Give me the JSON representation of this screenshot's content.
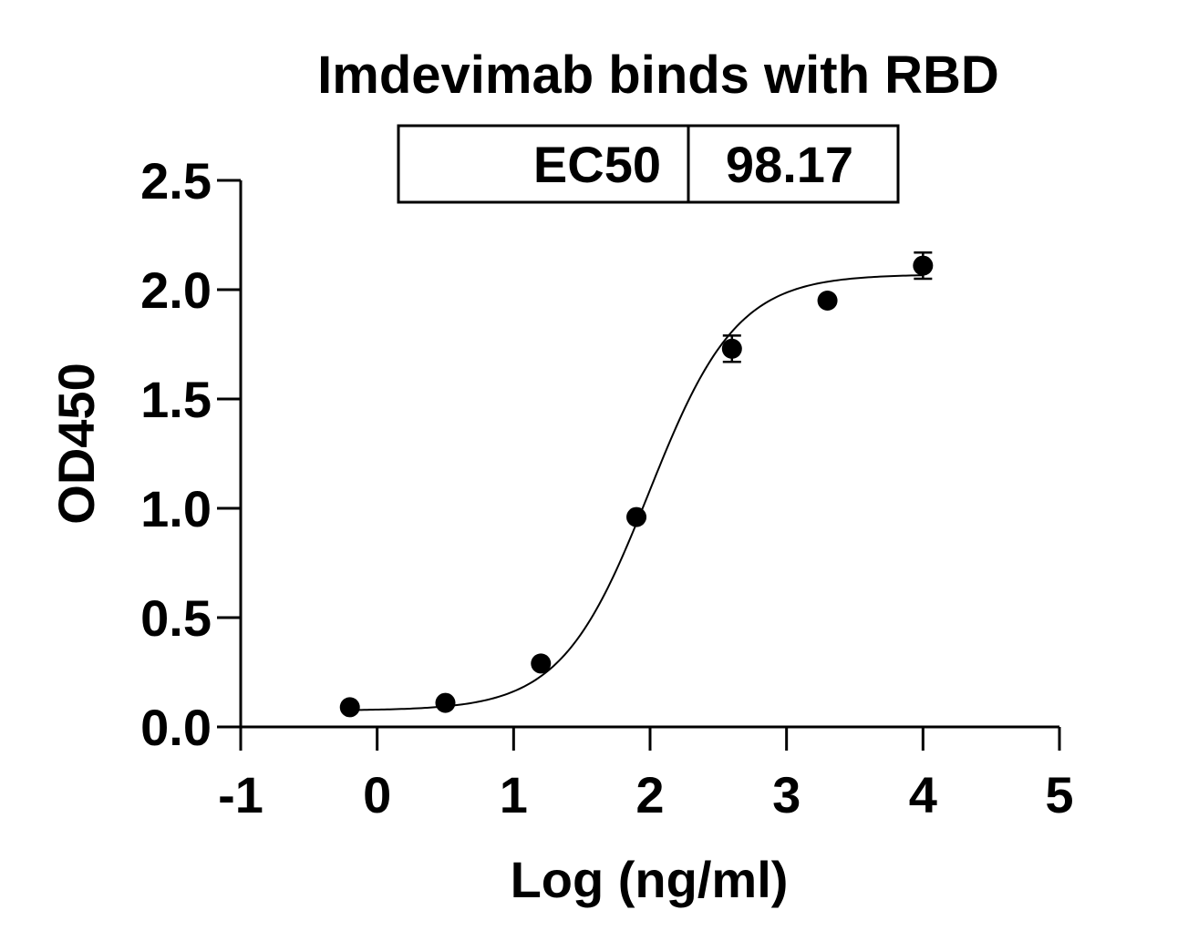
{
  "chart_data": {
    "type": "scatter",
    "title": "Imdevimab binds with RBD",
    "xlabel": "Log (ng/ml)",
    "ylabel": "OD450",
    "xlim": [
      -1,
      5
    ],
    "ylim": [
      0,
      2.5
    ],
    "x_ticks": [
      "-1",
      "0",
      "1",
      "2",
      "3",
      "4",
      "5"
    ],
    "y_ticks": [
      "0.0",
      "0.5",
      "1.0",
      "1.5",
      "2.0",
      "2.5"
    ],
    "grid": false,
    "series": [
      {
        "points": [
          {
            "x": -0.2,
            "y": 0.09,
            "err": 0.0
          },
          {
            "x": 0.5,
            "y": 0.11,
            "err": 0.0
          },
          {
            "x": 1.2,
            "y": 0.29,
            "err": 0.0
          },
          {
            "x": 1.9,
            "y": 0.96,
            "err": 0.0
          },
          {
            "x": 2.6,
            "y": 1.73,
            "err": 0.06
          },
          {
            "x": 3.3,
            "y": 1.95,
            "err": 0.0
          },
          {
            "x": 4.0,
            "y": 2.11,
            "err": 0.06
          }
        ]
      }
    ],
    "fit": {
      "model": "4PL",
      "bottom": 0.075,
      "top": 2.07,
      "logEC50": 1.992,
      "hill": 1.35
    },
    "results_table": {
      "label": "EC50",
      "value": "98.17"
    }
  }
}
